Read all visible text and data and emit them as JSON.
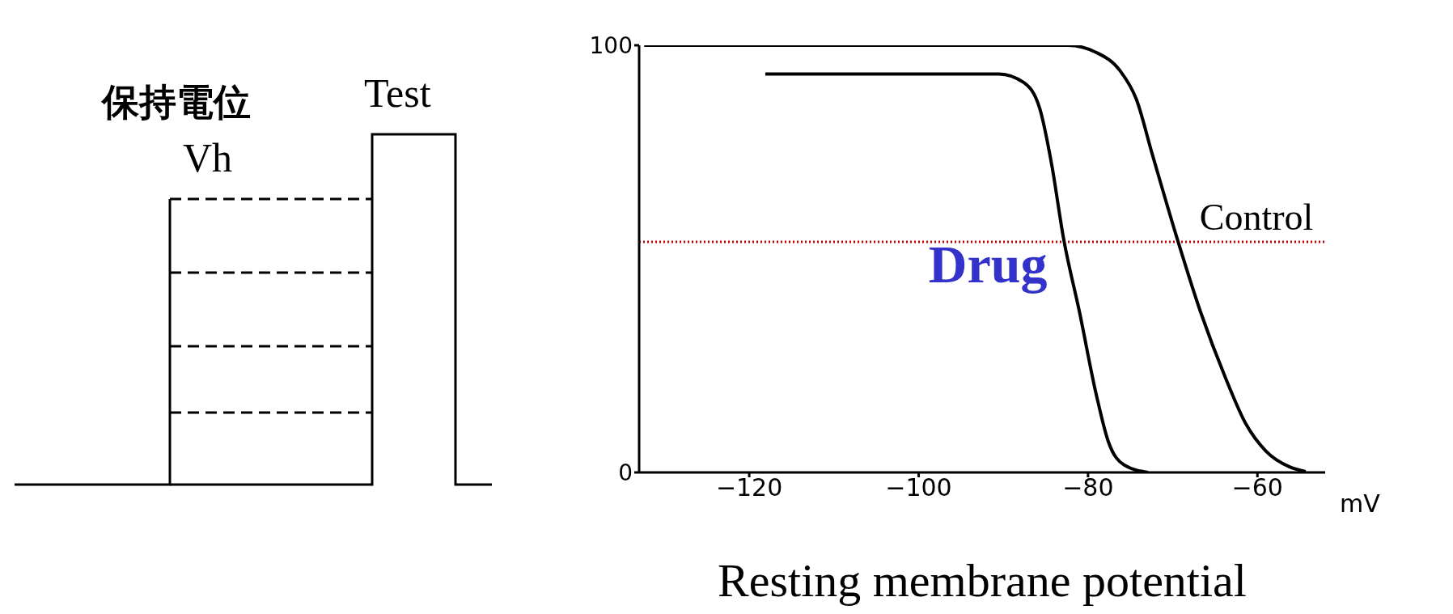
{
  "chart_data": {
    "type": "line",
    "xlabel": "Resting membrane potential",
    "xlim": [
      -133,
      -52
    ],
    "xticks": [
      -120,
      -100,
      -80,
      -60
    ],
    "ylim": [
      0,
      100
    ],
    "yticks": [
      0,
      100
    ],
    "series": [
      {
        "name": "Control",
        "color": "#000000",
        "x": [
          -132.4,
          -82.4,
          -79.0,
          -76.2,
          -74.3,
          -72.4,
          -69.5,
          -66.7,
          -63.8,
          -61.4,
          -59.0,
          -56.2,
          -54.3
        ],
        "values": [
          100,
          100,
          98.3,
          94,
          87.4,
          74.4,
          54.9,
          37.5,
          22.3,
          11.5,
          5,
          1.3,
          0.2
        ]
      },
      {
        "name": "Drug",
        "color": "#000000",
        "x": [
          -118.1,
          -90.5,
          -87.6,
          -85.7,
          -84.3,
          -82.9,
          -81.0,
          -79.0,
          -77.6,
          -75.7,
          -72.9
        ],
        "values": [
          93.3,
          93.3,
          91.3,
          85.2,
          72.2,
          54.9,
          37.5,
          18,
          7.2,
          1.7,
          0
        ]
      }
    ],
    "ref_lines": [
      {
        "axis": "y",
        "value": 54,
        "color": "#cc0000",
        "line_style": "dotted"
      }
    ],
    "annotations": [
      "保持電位",
      "Vh",
      "Test",
      "mV"
    ],
    "grid": false,
    "legend": false,
    "marker": "none",
    "line_style": "solid"
  }
}
